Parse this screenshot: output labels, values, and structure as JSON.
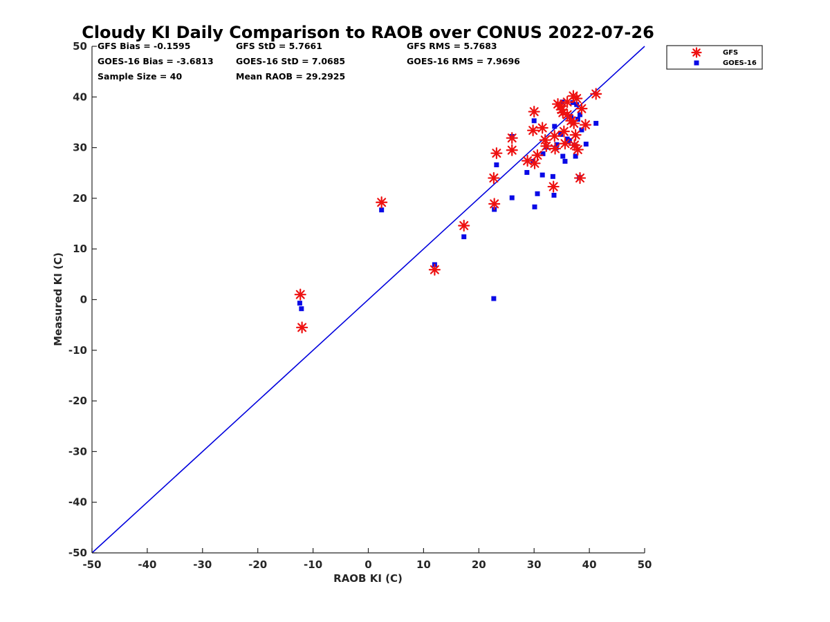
{
  "chart_data": {
    "type": "scatter",
    "title": "Cloudy KI Daily Comparison to RAOB over CONUS 2022-07-26",
    "xlabel": "RAOB KI (C)",
    "ylabel": "Measured KI (C)",
    "xlim": [
      -50,
      50
    ],
    "ylim": [
      -50,
      50
    ],
    "xticks": [
      "-50",
      "-40",
      "-30",
      "-20",
      "-10",
      "0",
      "10",
      "20",
      "30",
      "40",
      "50"
    ],
    "yticks": [
      "50",
      "40",
      "30",
      "20",
      "10",
      "0",
      "-10",
      "-20",
      "-30",
      "-40",
      "-50"
    ],
    "grid": false,
    "legend_position": "outside top-right",
    "reference_line": {
      "from": [
        -50,
        -50
      ],
      "to": [
        50,
        50
      ],
      "color": "#0000dd"
    },
    "stats": [
      "GFS Bias = -0.1595",
      "GFS StD = 5.7661",
      "GFS RMS = 5.7683",
      "GOES-16 Bias = -3.6813",
      "GOES-16 StD = 7.0685",
      "GOES-16 RMS = 7.9696",
      "Sample Size = 40",
      "Mean RAOB = 29.2925"
    ],
    "series": [
      {
        "name": "GFS",
        "marker": "asterisk",
        "color": "#ee1111",
        "points": [
          [
            -12.3,
            1.0
          ],
          [
            -12.0,
            -5.5
          ],
          [
            2.4,
            19.2
          ],
          [
            12.0,
            5.9
          ],
          [
            17.3,
            14.6
          ],
          [
            22.7,
            24.0
          ],
          [
            22.8,
            18.9
          ],
          [
            23.2,
            28.9
          ],
          [
            26.0,
            29.5
          ],
          [
            26.0,
            31.9
          ],
          [
            28.8,
            27.4
          ],
          [
            29.8,
            33.4
          ],
          [
            30.0,
            37.1
          ],
          [
            30.1,
            26.9
          ],
          [
            30.6,
            28.5
          ],
          [
            31.5,
            33.9
          ],
          [
            32.0,
            31.5
          ],
          [
            32.2,
            30.3
          ],
          [
            33.5,
            22.3
          ],
          [
            33.7,
            32.3
          ],
          [
            33.8,
            29.8
          ],
          [
            34.3,
            38.6
          ],
          [
            34.8,
            38.2
          ],
          [
            35.2,
            36.9
          ],
          [
            35.4,
            33.2
          ],
          [
            35.6,
            30.8
          ],
          [
            36.0,
            36.5
          ],
          [
            36.7,
            35.3
          ],
          [
            37.1,
            40.2
          ],
          [
            37.2,
            34.8
          ],
          [
            37.5,
            32.5
          ],
          [
            37.7,
            39.7
          ],
          [
            37.9,
            29.6
          ],
          [
            38.3,
            24.0
          ],
          [
            38.6,
            37.7
          ],
          [
            39.3,
            34.5
          ],
          [
            41.2,
            40.6
          ],
          [
            35.0,
            37.5
          ],
          [
            37.3,
            30.5
          ],
          [
            36.0,
            39.0
          ]
        ]
      },
      {
        "name": "GOES-16",
        "marker": "square",
        "color": "#0a0ae6",
        "points": [
          [
            -12.4,
            -0.7
          ],
          [
            -12.1,
            -1.8
          ],
          [
            2.4,
            17.7
          ],
          [
            12.0,
            6.9
          ],
          [
            17.3,
            12.4
          ],
          [
            22.7,
            0.2
          ],
          [
            22.8,
            17.8
          ],
          [
            23.2,
            26.6
          ],
          [
            26.0,
            20.1
          ],
          [
            26.0,
            32.2
          ],
          [
            28.7,
            25.1
          ],
          [
            29.8,
            27.3
          ],
          [
            30.0,
            35.3
          ],
          [
            30.1,
            18.3
          ],
          [
            30.6,
            20.9
          ],
          [
            31.5,
            24.6
          ],
          [
            31.6,
            28.8
          ],
          [
            32.2,
            30.1
          ],
          [
            33.4,
            24.3
          ],
          [
            33.6,
            20.6
          ],
          [
            33.7,
            34.2
          ],
          [
            34.1,
            30.6
          ],
          [
            34.8,
            32.6
          ],
          [
            35.1,
            39.0
          ],
          [
            35.2,
            28.3
          ],
          [
            35.6,
            27.3
          ],
          [
            36.0,
            31.7
          ],
          [
            36.4,
            31.4
          ],
          [
            37.0,
            38.9
          ],
          [
            37.3,
            30.5
          ],
          [
            37.5,
            28.3
          ],
          [
            37.7,
            38.5
          ],
          [
            37.9,
            35.6
          ],
          [
            38.2,
            24.1
          ],
          [
            38.6,
            33.5
          ],
          [
            39.4,
            30.7
          ],
          [
            41.2,
            34.8
          ],
          [
            36.7,
            35.9
          ],
          [
            38.3,
            36.5
          ],
          [
            34.0,
            30.0
          ]
        ]
      }
    ]
  }
}
